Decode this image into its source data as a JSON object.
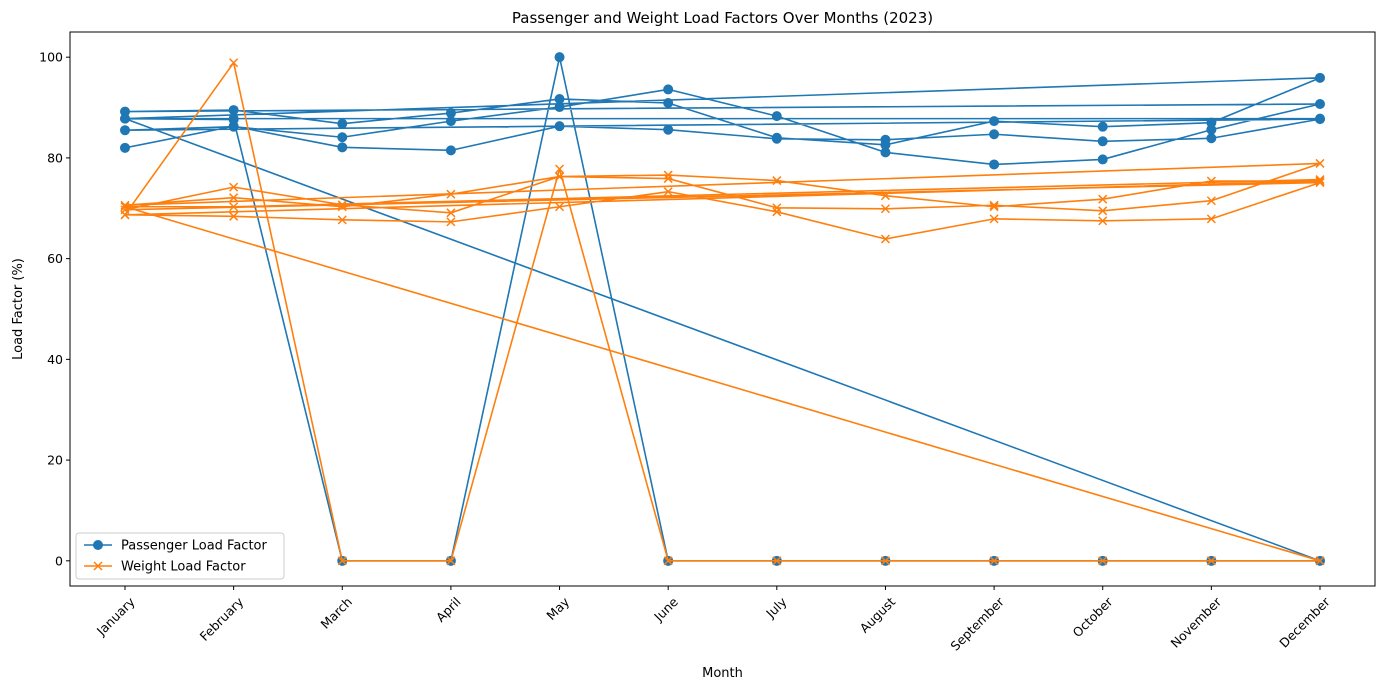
{
  "chart_data": {
    "type": "line",
    "title": "Passenger and Weight Load Factors Over Months (2023)",
    "xlabel": "Month",
    "ylabel": "Load Factor (%)",
    "ylim": [
      -5,
      105
    ],
    "yticks": [
      0,
      20,
      40,
      60,
      80,
      100
    ],
    "grid": false,
    "legend_position": "lower-left",
    "categories": [
      "January",
      "February",
      "March",
      "April",
      "May",
      "June",
      "July",
      "August",
      "September",
      "October",
      "November",
      "December"
    ],
    "series": [
      {
        "name": "Passenger Load Factor",
        "color": "#1f77b4",
        "marker": "circle",
        "points": [
          [
            "January",
            82
          ],
          [
            "February",
            86.3
          ],
          [
            "March",
            82.1
          ],
          [
            "April",
            81.5
          ],
          [
            "May",
            86.3
          ],
          [
            "June",
            85.6
          ],
          [
            "July",
            83.8
          ],
          [
            "August",
            83.6
          ],
          [
            "September",
            84.7
          ],
          [
            "October",
            83.3
          ],
          [
            "November",
            83.9
          ],
          [
            "December",
            87.7
          ],
          [
            "January",
            85.5
          ],
          [
            "February",
            86.2
          ],
          [
            "March",
            84.1
          ],
          [
            "April",
            87.3
          ],
          [
            "May",
            90.1
          ],
          [
            "June",
            93.6
          ],
          [
            "July",
            88.3
          ],
          [
            "August",
            81.1
          ],
          [
            "September",
            78.7
          ],
          [
            "October",
            79.7
          ],
          [
            "November",
            85.6
          ],
          [
            "December",
            90.7
          ],
          [
            "January",
            89.2
          ],
          [
            "February",
            89.5
          ],
          [
            "March",
            86.8
          ],
          [
            "April",
            88.9
          ],
          [
            "May",
            91.7
          ],
          [
            "June",
            90.9
          ],
          [
            "July",
            84.0
          ],
          [
            "August",
            82.6
          ],
          [
            "September",
            87.3
          ],
          [
            "October",
            86.2
          ],
          [
            "November",
            87.0
          ],
          [
            "December",
            95.9
          ],
          [
            "January",
            87.8
          ],
          [
            "February",
            87.6
          ],
          [
            "March",
            0
          ],
          [
            "April",
            0
          ],
          [
            "May",
            100
          ],
          [
            "June",
            0
          ],
          [
            "July",
            0
          ],
          [
            "August",
            0
          ],
          [
            "September",
            0
          ],
          [
            "October",
            0
          ],
          [
            "November",
            0
          ],
          [
            "December",
            0
          ],
          [
            "January",
            87.8
          ],
          [
            "February",
            87.8
          ],
          [
            "December",
            87.8
          ]
        ]
      },
      {
        "name": "Weight Load Factor",
        "color": "#ff7f0e",
        "marker": "x",
        "points": [
          [
            "January",
            68.7
          ],
          [
            "February",
            68.4
          ],
          [
            "March",
            67.7
          ],
          [
            "April",
            67.3
          ],
          [
            "May",
            70.3
          ],
          [
            "June",
            73.3
          ],
          [
            "July",
            69.3
          ],
          [
            "August",
            63.9
          ],
          [
            "September",
            67.9
          ],
          [
            "October",
            67.5
          ],
          [
            "November",
            67.9
          ],
          [
            "December",
            75.1
          ],
          [
            "January",
            69.7
          ],
          [
            "February",
            74.2
          ],
          [
            "March",
            70.7
          ],
          [
            "April",
            69.1
          ],
          [
            "May",
            76.3
          ],
          [
            "June",
            75.9
          ],
          [
            "July",
            70.1
          ],
          [
            "August",
            69.9
          ],
          [
            "September",
            70.6
          ],
          [
            "October",
            69.5
          ],
          [
            "November",
            71.5
          ],
          [
            "December",
            78.9
          ],
          [
            "January",
            70.6
          ],
          [
            "February",
            72.1
          ],
          [
            "March",
            70.3
          ],
          [
            "April",
            72.8
          ],
          [
            "May",
            76.3
          ],
          [
            "June",
            76.6
          ],
          [
            "July",
            75.5
          ],
          [
            "August",
            72.5
          ],
          [
            "September",
            70.3
          ],
          [
            "October",
            71.8
          ],
          [
            "November",
            75.4
          ],
          [
            "December",
            75.4
          ],
          [
            "January",
            68.7
          ],
          [
            "February",
            98.9
          ],
          [
            "March",
            0
          ],
          [
            "April",
            0
          ],
          [
            "May",
            77.8
          ],
          [
            "June",
            0
          ],
          [
            "July",
            0
          ],
          [
            "August",
            0
          ],
          [
            "September",
            0
          ],
          [
            "October",
            0
          ],
          [
            "November",
            0
          ],
          [
            "December",
            0
          ],
          [
            "January",
            70.3
          ],
          [
            "February",
            70.3
          ],
          [
            "December",
            75.7
          ]
        ]
      }
    ]
  }
}
